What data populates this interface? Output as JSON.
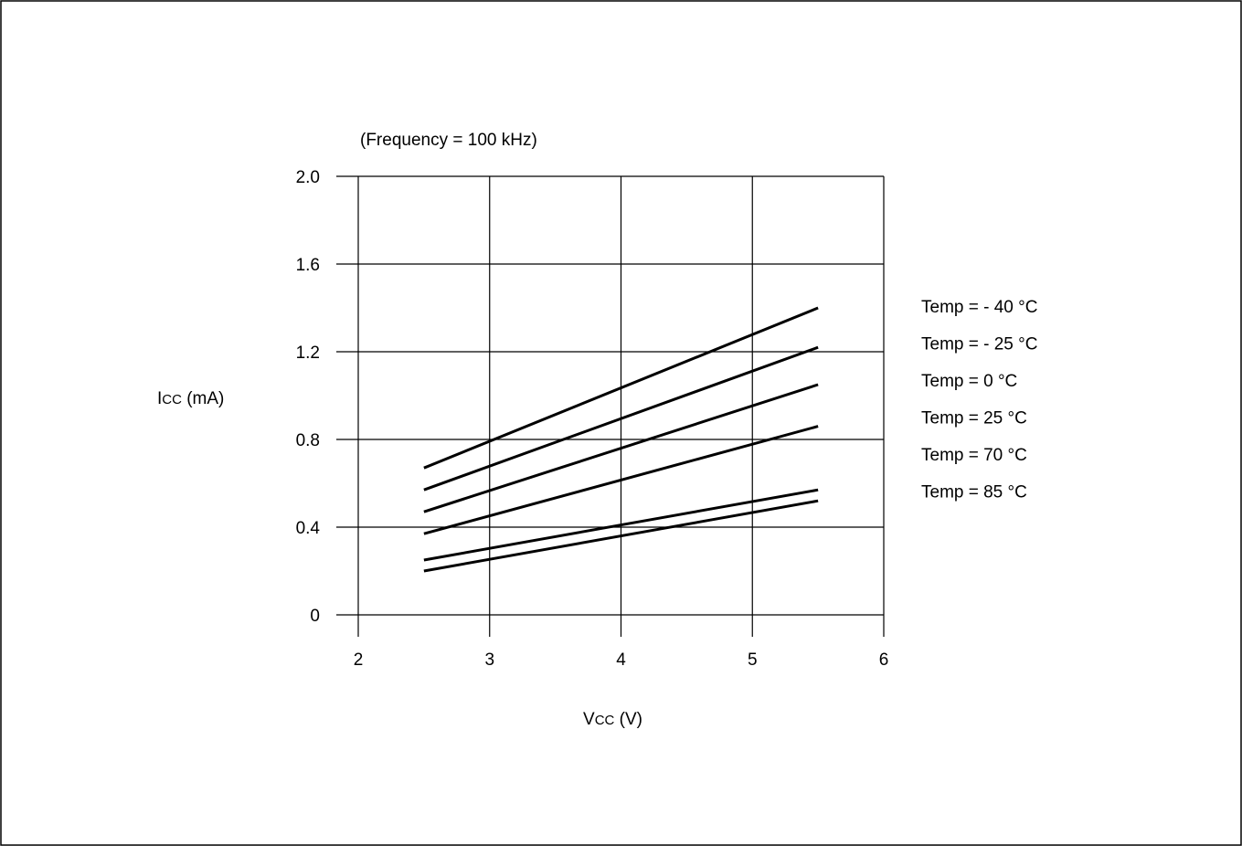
{
  "chart_data": {
    "type": "line",
    "subtitle": "(Frequency = 100 kHz)",
    "xlabel_main": "V",
    "xlabel_sub": "CC",
    "xlabel_unit": " (V)",
    "ylabel_main": "I",
    "ylabel_sub": "CC",
    "ylabel_unit": " (mA)",
    "xlim": [
      2,
      6
    ],
    "ylim": [
      0,
      2.0
    ],
    "x_ticks": [
      "2",
      "3",
      "4",
      "5",
      "6"
    ],
    "y_ticks": [
      "0",
      "0.4",
      "0.8",
      "1.2",
      "1.6",
      "2.0"
    ],
    "grid": true,
    "legend_position": "right",
    "series": [
      {
        "name": "Temp = - 40 °C",
        "x": [
          2.5,
          5.5
        ],
        "y": [
          0.67,
          1.4
        ]
      },
      {
        "name": "Temp = - 25 °C",
        "x": [
          2.5,
          5.5
        ],
        "y": [
          0.57,
          1.22
        ]
      },
      {
        "name": "Temp = 0 °C",
        "x": [
          2.5,
          5.5
        ],
        "y": [
          0.47,
          1.05
        ]
      },
      {
        "name": "Temp = 25 °C",
        "x": [
          2.5,
          5.5
        ],
        "y": [
          0.37,
          0.86
        ]
      },
      {
        "name": "Temp = 70 °C",
        "x": [
          2.5,
          5.5
        ],
        "y": [
          0.25,
          0.57
        ]
      },
      {
        "name": "Temp = 85 °C",
        "x": [
          2.5,
          5.5
        ],
        "y": [
          0.2,
          0.52
        ]
      }
    ]
  }
}
